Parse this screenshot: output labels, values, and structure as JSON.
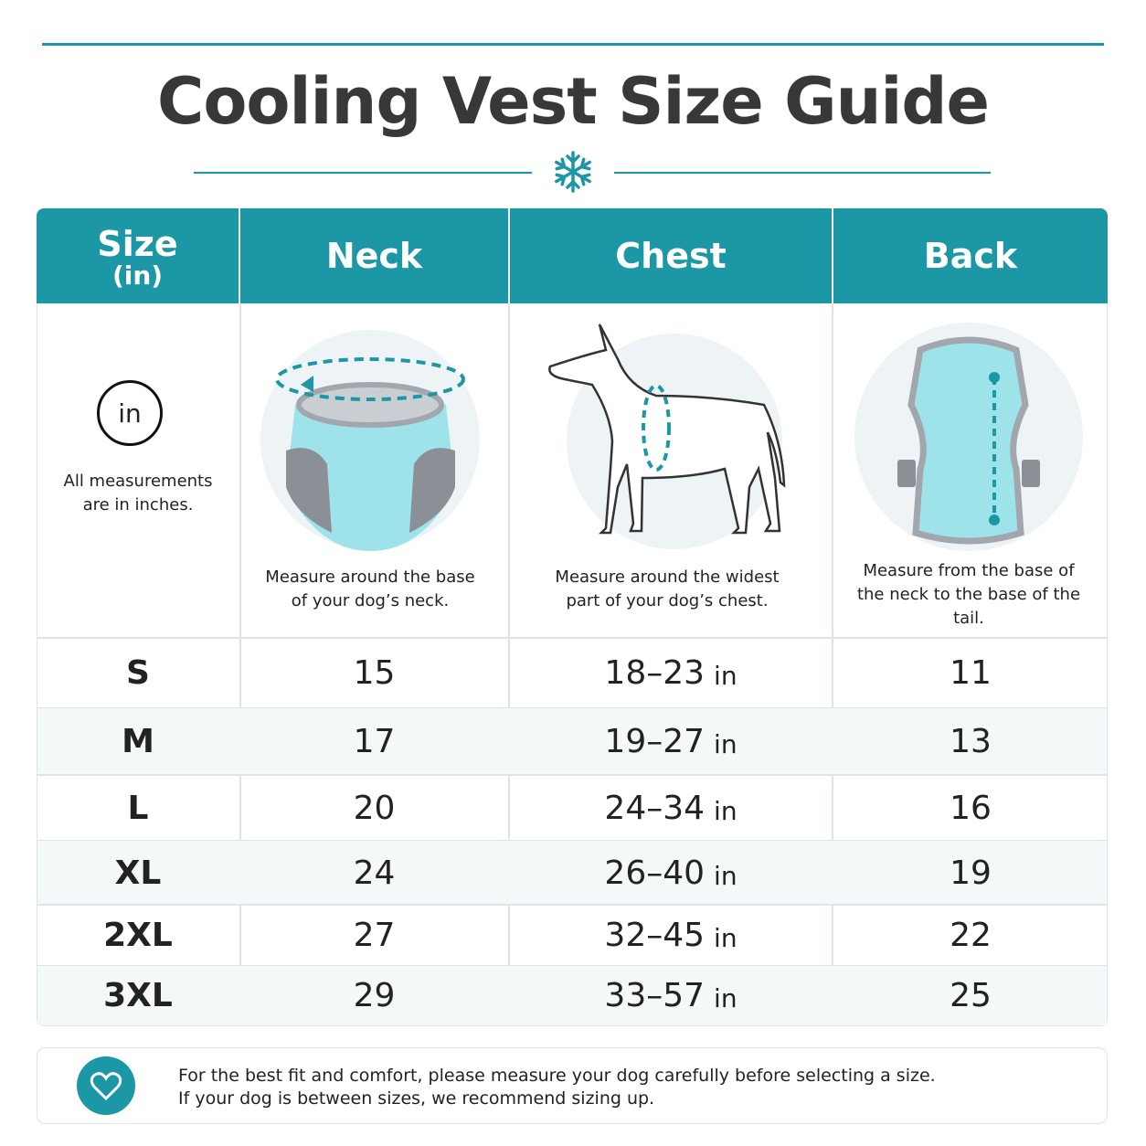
{
  "header": {
    "title": "Cooling Vest Size Guide"
  },
  "table": {
    "columns": [
      {
        "label": "Size",
        "sub": "(in)"
      },
      {
        "label": "Neck"
      },
      {
        "label": "Chest"
      },
      {
        "label": "Back"
      }
    ],
    "unit_badge": "in",
    "unit_note": "All measurements are in inches.",
    "captions": [
      "Measure around the base of your dog’s neck.",
      "Measure around the widest part of your dog’s chest.",
      "Measure from the base of the neck to the base of the tail."
    ],
    "rows": [
      [
        "S",
        15,
        {
          "range": "18–23",
          "unit": "in"
        },
        11
      ],
      [
        "M",
        17,
        {
          "range": "19–27",
          "unit": "in"
        },
        13
      ],
      [
        "L",
        20,
        {
          "range": "24–34",
          "unit": "in"
        },
        16
      ],
      [
        "XL",
        24,
        {
          "range": "26–40",
          "unit": "in"
        },
        19
      ],
      [
        "2XL",
        27,
        {
          "range": "32–45",
          "unit": "in"
        },
        22
      ],
      [
        "3XL",
        29,
        {
          "range": "33–57",
          "unit": "in"
        },
        25
      ]
    ]
  },
  "footer": {
    "lines": [
      "For the best fit and comfort, please measure your dog carefully before selecting a size.",
      "If your dog is between sizes, we recommend sizing up."
    ]
  }
}
